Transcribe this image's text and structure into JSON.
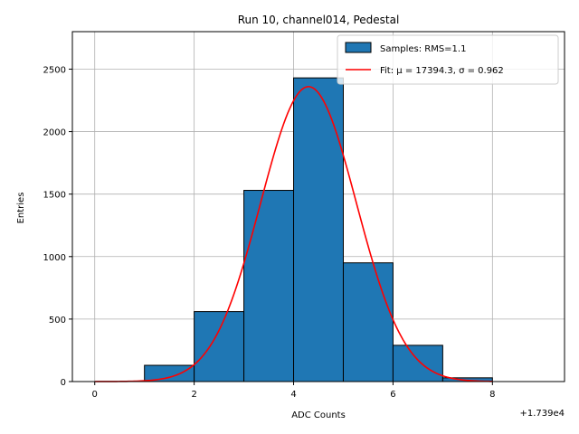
{
  "chart_data": {
    "type": "bar",
    "title": "Run 10, channel014, Pedestal",
    "xlabel": "ADC Counts",
    "ylabel": "Entries",
    "x_offset_text": "+1.739e4",
    "xlim": [
      -0.45,
      9.45
    ],
    "ylim": [
      0,
      2800
    ],
    "xticks": [
      0,
      2,
      4,
      6,
      8
    ],
    "yticks": [
      0,
      500,
      1000,
      1500,
      2000,
      2500
    ],
    "grid": true,
    "legend_position": "top-right",
    "histogram": {
      "name": "Samples: RMS=1.1",
      "bin_edges": [
        1,
        2,
        3,
        4,
        5,
        6,
        7,
        8
      ],
      "counts": [
        130,
        560,
        1530,
        2430,
        950,
        290,
        30
      ],
      "fill_color": "#1f77b4",
      "edge_color": "#000000"
    },
    "fit": {
      "name": "Fit: μ = 17394.3, σ = 0.962",
      "type": "gaussian",
      "mu": 4.3,
      "sigma": 0.962,
      "amplitude": 2360,
      "x_range": [
        0,
        8
      ],
      "color": "#ff0000"
    }
  }
}
